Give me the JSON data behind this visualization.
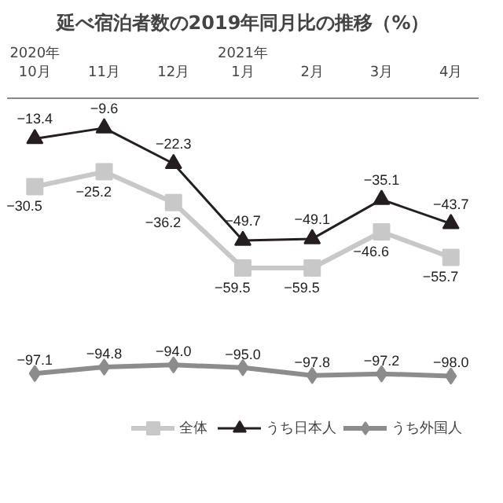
{
  "chart_data": {
    "type": "line",
    "title": "延べ宿泊者数の2019年同月比の推移（%）",
    "categories": [
      "2020年\n10月",
      "11月",
      "12月",
      "2021年\n1月",
      "2月",
      "3月",
      "4月"
    ],
    "series": [
      {
        "name": "全体",
        "color": "#c8c8c8",
        "marker": "square",
        "values": [
          -30.5,
          -25.2,
          -36.2,
          -59.5,
          -59.5,
          -46.6,
          -55.7
        ],
        "value_labels": [
          "−30.5",
          "−25.2",
          "−36.2",
          "−59.5",
          "−59.5",
          "−46.6",
          "−55.7"
        ]
      },
      {
        "name": "うち日本人",
        "color": "#231f20",
        "marker": "triangle",
        "values": [
          -13.4,
          -9.6,
          -22.3,
          -49.7,
          -49.1,
          -35.1,
          -43.7
        ],
        "value_labels": [
          "−13.4",
          "−9.6",
          "−22.3",
          "−49.7",
          "−49.1",
          "−35.1",
          "−43.7"
        ]
      },
      {
        "name": "うち外国人",
        "color": "#8c8c8c",
        "marker": "diamond",
        "values": [
          -97.1,
          -94.8,
          -94.0,
          -95.0,
          -97.8,
          -97.2,
          -98.0
        ],
        "value_labels": [
          "−97.1",
          "−94.8",
          "−94.0",
          "−95.0",
          "−97.8",
          "−97.2",
          "−98.0"
        ]
      }
    ],
    "legend": "bottom"
  }
}
